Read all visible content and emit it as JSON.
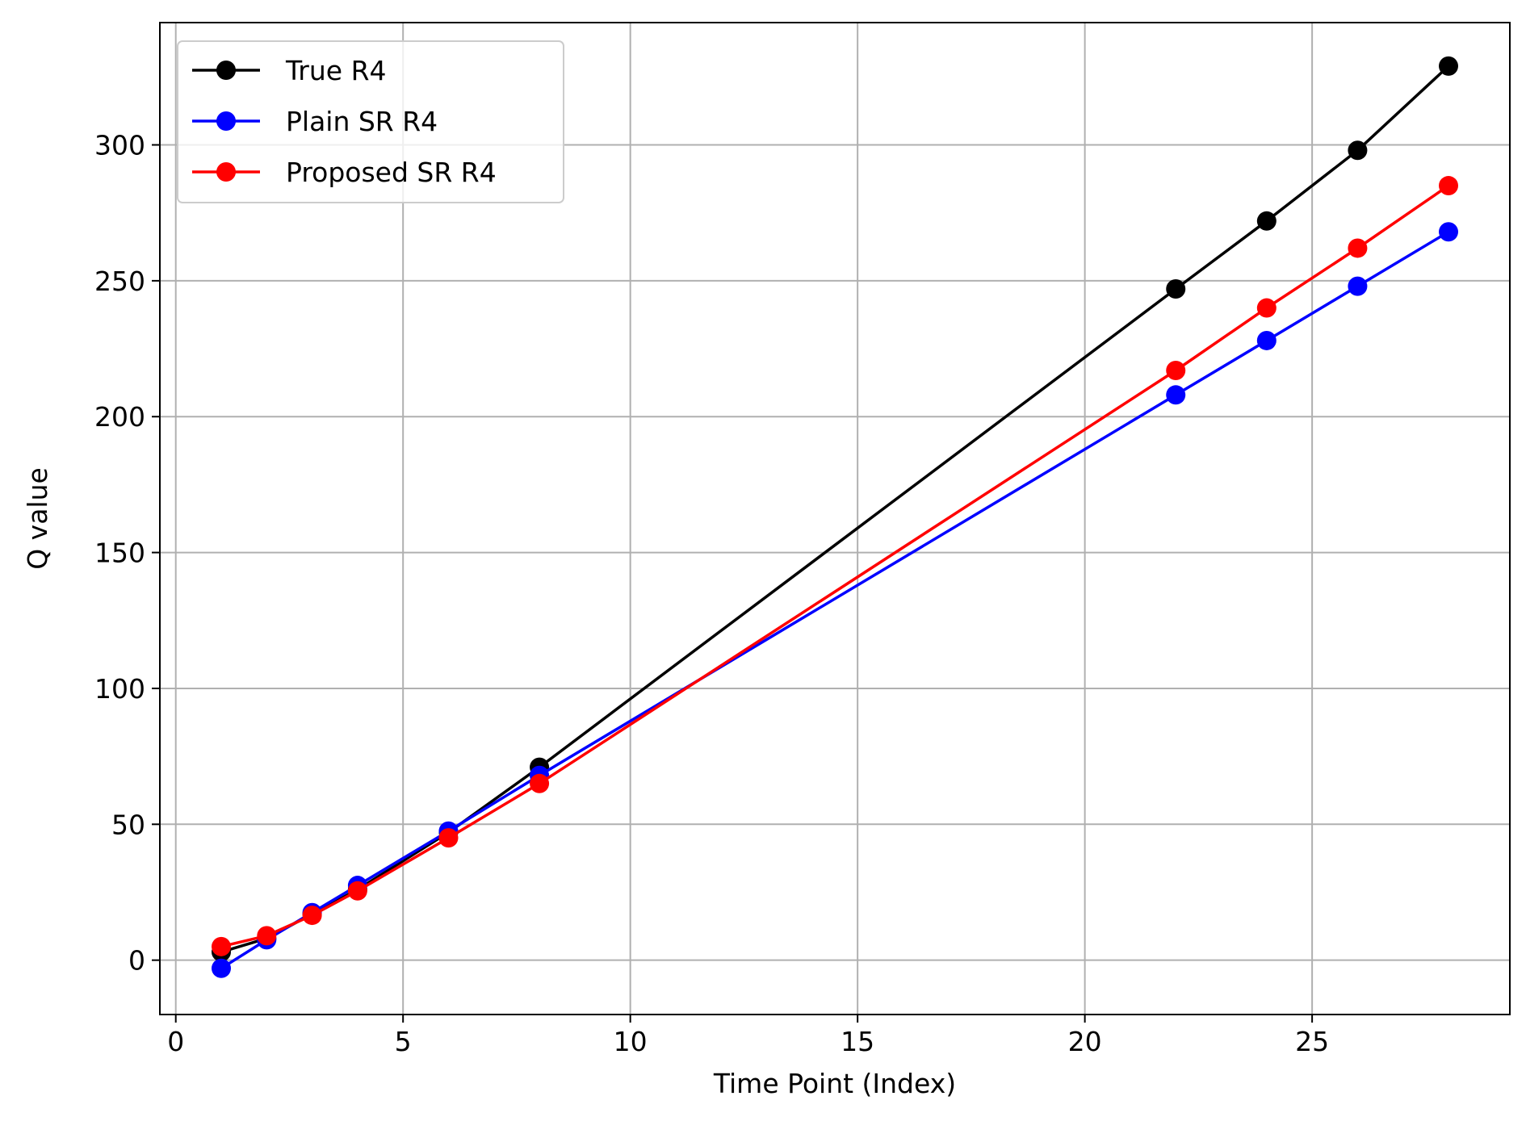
{
  "chart_data": {
    "type": "line",
    "title": "",
    "xlabel": "Time Point (Index)",
    "ylabel": "Q value",
    "xlim": [
      -0.35,
      29.35
    ],
    "ylim": [
      -20,
      345
    ],
    "xticks": [
      0,
      5,
      10,
      15,
      20,
      25
    ],
    "yticks": [
      0,
      50,
      100,
      150,
      200,
      250,
      300
    ],
    "grid": true,
    "legend_position": "top-left",
    "x": [
      1,
      2,
      3,
      4,
      6,
      8,
      22,
      24,
      26,
      28
    ],
    "series": [
      {
        "name": "True R4",
        "color": "#000000",
        "values": [
          3,
          8,
          17,
          26,
          47,
          71,
          247,
          272,
          298,
          329
        ]
      },
      {
        "name": "Plain SR R4",
        "color": "#0000ff",
        "values": [
          -3,
          7.5,
          17.5,
          27.5,
          47.5,
          68,
          208,
          228,
          248,
          268
        ]
      },
      {
        "name": "Proposed SR R4",
        "color": "#ff0000",
        "values": [
          5,
          9,
          16.5,
          25.5,
          45,
          65,
          217,
          240,
          262,
          285
        ]
      }
    ]
  }
}
